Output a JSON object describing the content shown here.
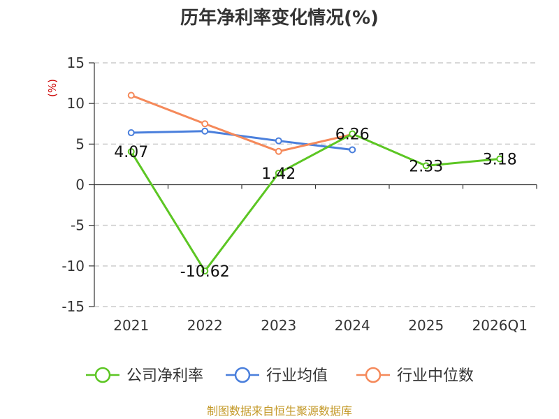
{
  "chart_data": {
    "type": "line",
    "title": "历年净利率变化情况(%)",
    "ylabel": "(%)",
    "ylim": [
      -15,
      15
    ],
    "yticks": [
      15,
      10,
      5,
      0,
      -5,
      -10,
      -15
    ],
    "categories": [
      "2021",
      "2022",
      "2023",
      "2024",
      "2025",
      "2026Q1"
    ],
    "grid": true,
    "legend_position": "bottom",
    "series": [
      {
        "name": "公司净利率",
        "color": "#5cc623",
        "values": [
          4.07,
          -10.62,
          1.42,
          6.26,
          2.33,
          3.18
        ],
        "labels": [
          "4.07",
          "-10.62",
          "1.42",
          "6.26",
          "2.33",
          "3.18"
        ]
      },
      {
        "name": "行业均值",
        "color": "#4a7fdc",
        "values": [
          6.4,
          6.6,
          5.4,
          4.3,
          null,
          null
        ]
      },
      {
        "name": "行业中位数",
        "color": "#f5895a",
        "values": [
          11.0,
          7.5,
          4.1,
          6.2,
          null,
          null
        ]
      }
    ]
  },
  "footer": {
    "source": "制图数据来自恒生聚源数据库"
  }
}
